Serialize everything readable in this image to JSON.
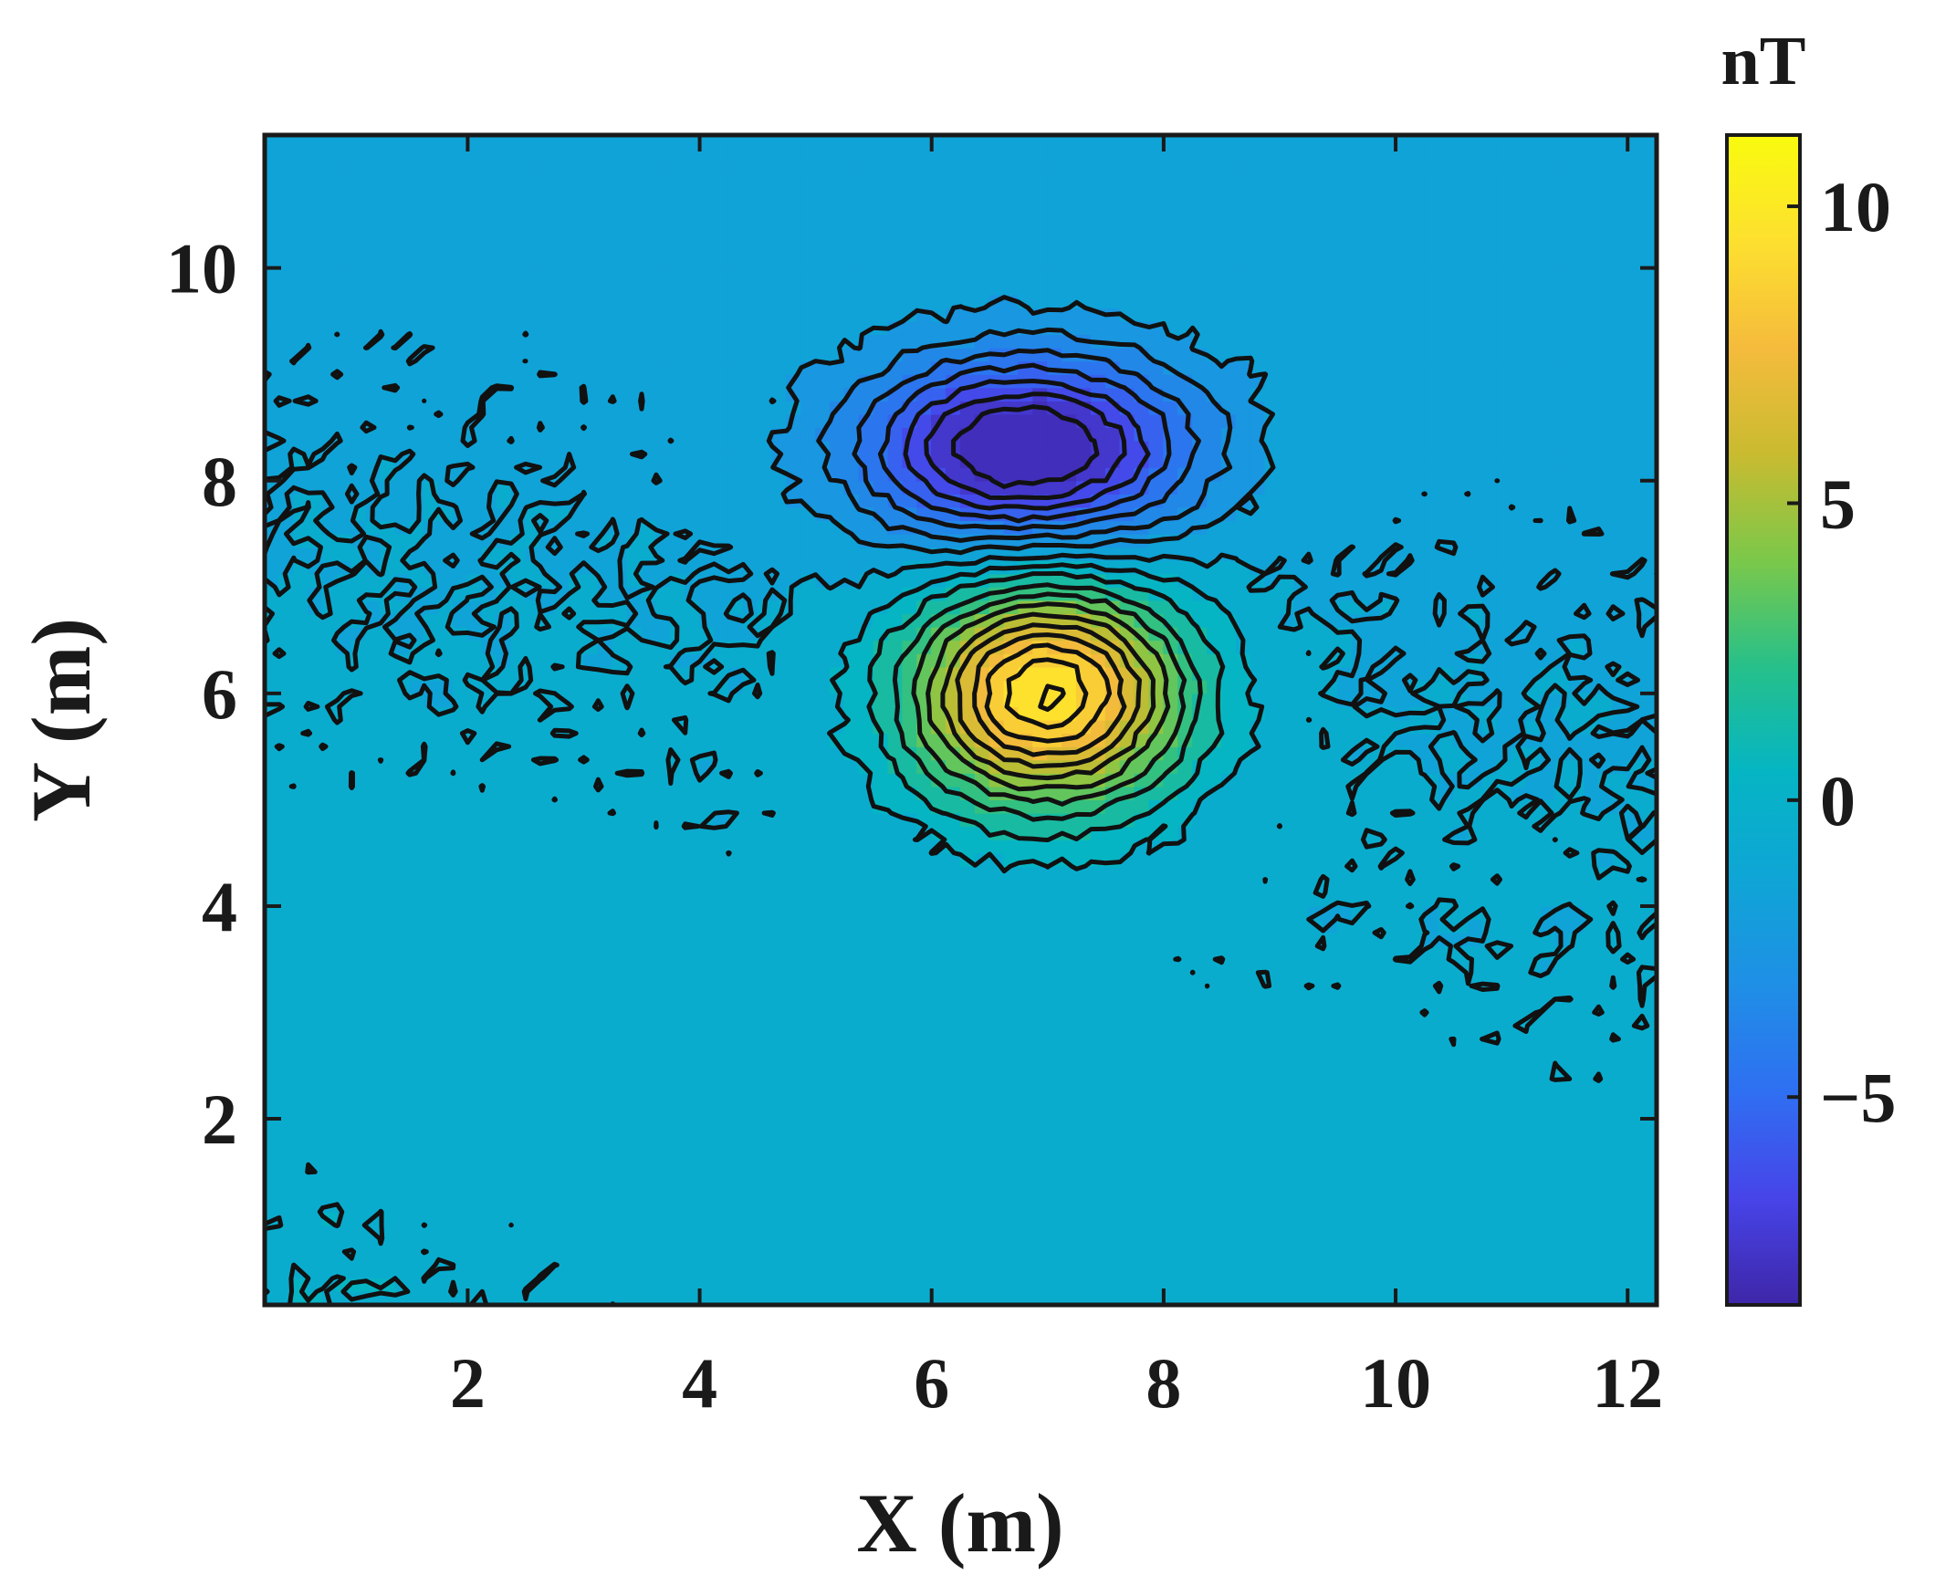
{
  "chart_data": {
    "type": "heatmap",
    "subtype": "filled-contour",
    "title": "",
    "xlabel": "X (m)",
    "ylabel": "Y (m)",
    "xlim": [
      0.25,
      12.25
    ],
    "ylim": [
      0.25,
      11.25
    ],
    "xticks": [
      2,
      4,
      6,
      8,
      10,
      12
    ],
    "yticks": [
      2,
      4,
      6,
      8,
      10
    ],
    "grid": false,
    "colorbar": {
      "label": "nT",
      "limits": [
        -8.5,
        11.2
      ],
      "ticks": [
        10,
        5,
        0,
        -5
      ],
      "tick_labels": [
        "10",
        "5",
        "0",
        "−5"
      ],
      "colormap": "parula",
      "colors": [
        "#3e26a8",
        "#4744e8",
        "#2f6ff2",
        "#1f8fe6",
        "#0fa5d6",
        "#05b5c4",
        "#26c08a",
        "#7bc84a",
        "#c9bb30",
        "#f5bb3c",
        "#fde02f",
        "#f9fb0e"
      ]
    },
    "contour_levels": [
      -8,
      -7,
      -6,
      -5,
      -4,
      -3,
      -2,
      -1,
      0,
      1,
      2,
      3,
      4,
      5,
      6,
      7,
      8,
      9,
      10,
      11
    ],
    "features": [
      {
        "type": "minimum",
        "x": 6.8,
        "y": 8.3,
        "value": -8.3
      },
      {
        "type": "maximum",
        "x": 7.0,
        "y": 6.0,
        "value": 11.0
      }
    ]
  }
}
